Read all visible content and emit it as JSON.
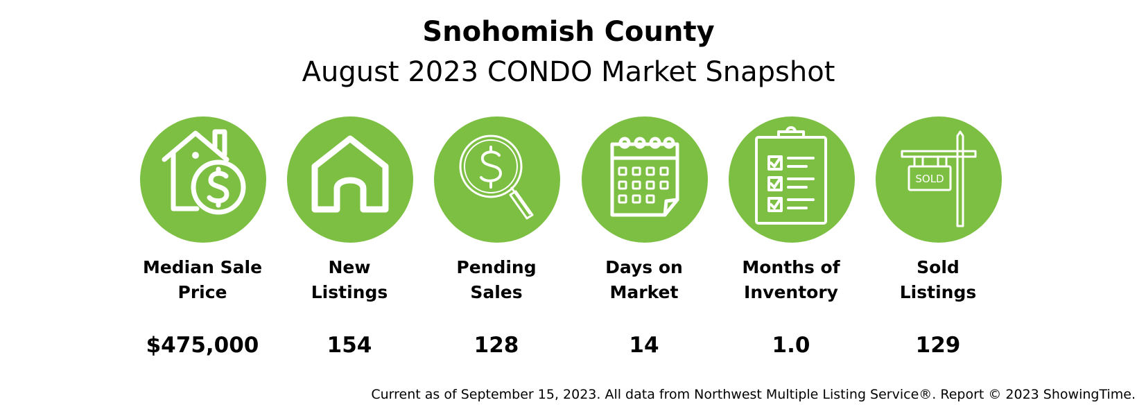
{
  "header": {
    "title": "Snohomish County",
    "subtitle": "August 2023 CONDO Market Snapshot"
  },
  "accent_color": "#7cbf42",
  "stats": [
    {
      "icon": "house-dollar-icon",
      "label_lines": [
        "Median Sale",
        "Price"
      ],
      "value": "$475,000"
    },
    {
      "icon": "house-icon",
      "label_lines": [
        "New",
        "Listings"
      ],
      "value": "154"
    },
    {
      "icon": "magnifier-dollar-icon",
      "label_lines": [
        "Pending",
        "Sales"
      ],
      "value": "128"
    },
    {
      "icon": "calendar-icon",
      "label_lines": [
        "Days on",
        "Market"
      ],
      "value": "14"
    },
    {
      "icon": "clipboard-checklist-icon",
      "label_lines": [
        "Months of",
        "Inventory"
      ],
      "value": "1.0"
    },
    {
      "icon": "sold-sign-icon",
      "icon_text": "SOLD",
      "label_lines": [
        "Sold",
        "Listings"
      ],
      "value": "129"
    }
  ],
  "footer": {
    "text": "Current as of September 15, 2023. All data from Northwest Multiple Listing Service®. Report © 2023 ShowingTime."
  }
}
